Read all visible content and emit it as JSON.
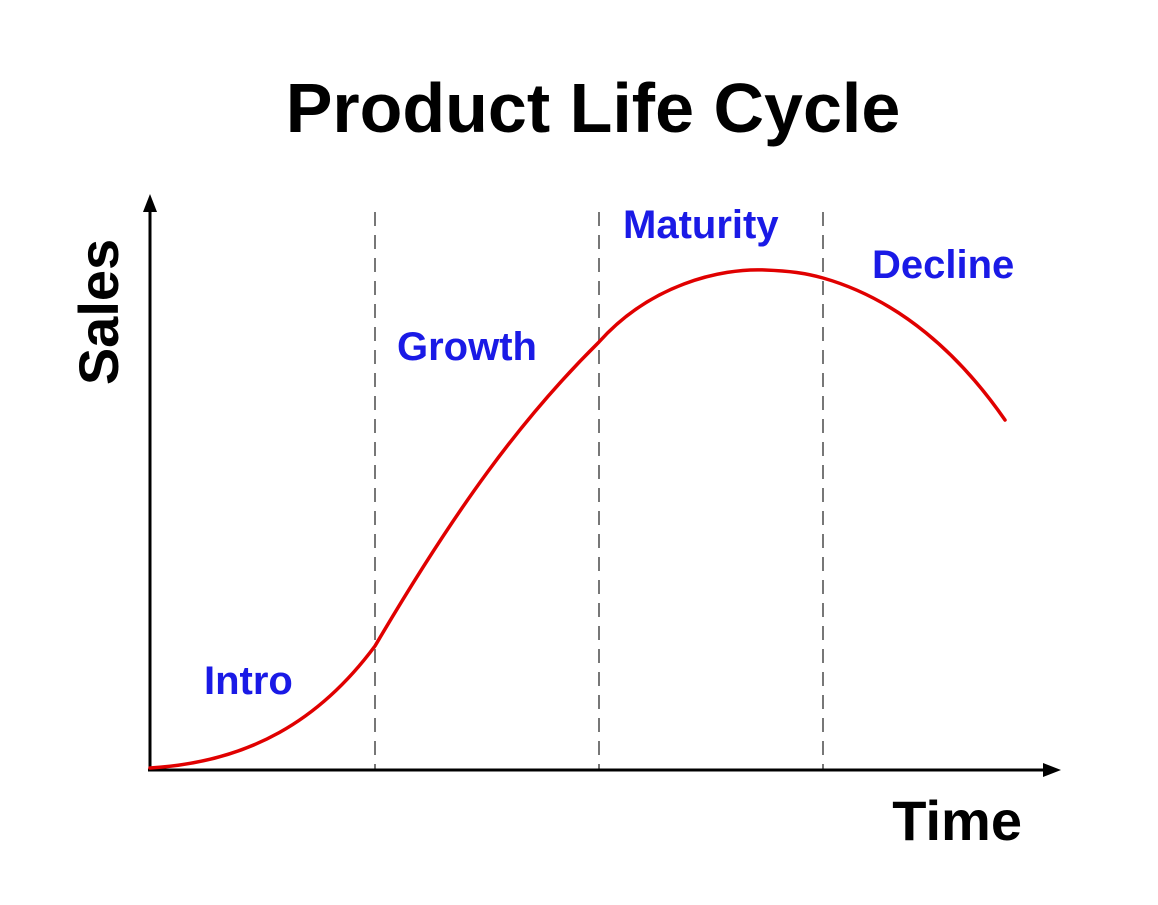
{
  "title": "Product Life Cycle",
  "x_axis_label": "Time",
  "y_axis_label": "Sales",
  "colors": {
    "curve": "#e00000",
    "stage_label": "#1a1ae6",
    "axis": "#000000",
    "divider": "#777777"
  },
  "stages": [
    {
      "label": "Intro"
    },
    {
      "label": "Growth"
    },
    {
      "label": "Maturity"
    },
    {
      "label": "Decline"
    }
  ]
}
